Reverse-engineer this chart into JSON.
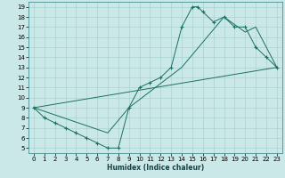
{
  "xlabel": "Humidex (Indice chaleur)",
  "bg_color": "#cbe8e8",
  "grid_color": "#aad0d0",
  "line_color": "#1a7060",
  "xlim": [
    -0.5,
    23.5
  ],
  "ylim": [
    4.5,
    19.5
  ],
  "xticks": [
    0,
    1,
    2,
    3,
    4,
    5,
    6,
    7,
    8,
    9,
    10,
    11,
    12,
    13,
    14,
    15,
    16,
    17,
    18,
    19,
    20,
    21,
    22,
    23
  ],
  "yticks": [
    5,
    6,
    7,
    8,
    9,
    10,
    11,
    12,
    13,
    14,
    15,
    16,
    17,
    18,
    19
  ],
  "line1_x": [
    0,
    1,
    2,
    3,
    4,
    5,
    6,
    7,
    8,
    9,
    10,
    11,
    12,
    13,
    14,
    15,
    15.5,
    16,
    17,
    18,
    19,
    20,
    21,
    22,
    23
  ],
  "line1_y": [
    9.0,
    8.0,
    7.5,
    7.0,
    6.5,
    6.0,
    5.5,
    5.0,
    5.0,
    9.0,
    11.0,
    11.5,
    12.0,
    13.0,
    17.0,
    19.0,
    19.0,
    18.5,
    17.5,
    18.0,
    17.0,
    17.0,
    15.0,
    14.0,
    13.0
  ],
  "line2_x": [
    0,
    23
  ],
  "line2_y": [
    9.0,
    13.0
  ],
  "line3_x": [
    0,
    7,
    9,
    14,
    16,
    18,
    20,
    21,
    23
  ],
  "line3_y": [
    9.0,
    6.5,
    9.0,
    13.0,
    15.5,
    18.0,
    16.5,
    17.0,
    13.0
  ]
}
